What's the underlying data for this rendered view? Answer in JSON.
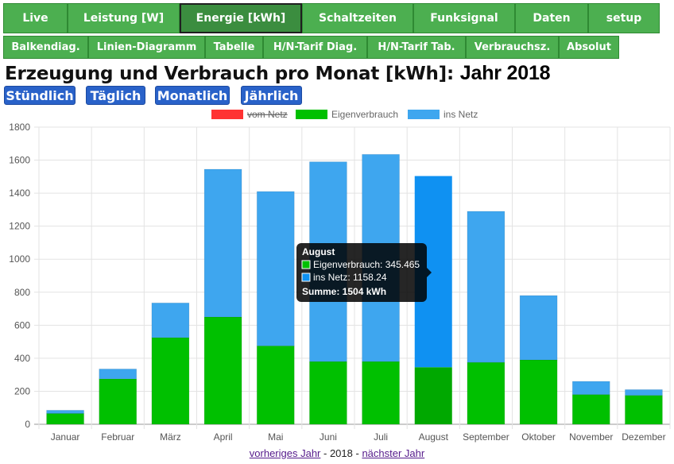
{
  "nav_main": [
    "Live",
    "Leistung [W]",
    "Energie [kWh]",
    "Schaltzeiten",
    "Funksignal",
    "Daten",
    "setup"
  ],
  "nav_main_active": "Energie [kWh]",
  "nav_sub": [
    "Balkendiag.",
    "Linien-Diagramm",
    "Tabelle",
    "H/N-Tarif Diag.",
    "H/N-Tarif Tab.",
    "Verbrauchsz.",
    "Absolut"
  ],
  "page": {
    "title": "Erzeugung und Verbrauch pro Monat [kWh]: ",
    "year_label": "Jahr 2018"
  },
  "period_buttons": [
    "Stündlich",
    "Täglich",
    "Monatlich",
    "Jährlich"
  ],
  "chart_data": {
    "type": "bar",
    "stacked": true,
    "categories": [
      "Januar",
      "Februar",
      "März",
      "April",
      "Mai",
      "Juni",
      "Juli",
      "August",
      "September",
      "Oktober",
      "November",
      "Dezember"
    ],
    "series": [
      {
        "name": "vom Netz",
        "color": "#ff3333",
        "hidden": true,
        "values": [
          0,
          0,
          0,
          0,
          0,
          0,
          0,
          0,
          0,
          0,
          0,
          0
        ]
      },
      {
        "name": "Eigenverbrauch",
        "color": "#00c000",
        "values": [
          65,
          275,
          525,
          650,
          475,
          380,
          380,
          345.465,
          375,
          390,
          180,
          175
        ]
      },
      {
        "name": "ins Netz",
        "color": "#3ea6ef",
        "values": [
          20,
          60,
          210,
          895,
          935,
          1210,
          1255,
          1158.24,
          915,
          390,
          80,
          35
        ]
      }
    ],
    "ylim": [
      0,
      1800
    ],
    "yticks": [
      0,
      200,
      400,
      600,
      800,
      1000,
      1200,
      1400,
      1600,
      1800
    ],
    "grid": true,
    "legend_position": "top",
    "tooltip": {
      "category_index": 7,
      "title": "August",
      "lines": [
        "Eigenverbrauch: 345.465",
        "ins Netz: 1158.24"
      ],
      "sum_line": "Summe: 1504 kWh"
    }
  },
  "footer": {
    "prev": "vorheriges Jahr",
    "sep1": " - ",
    "year": "2018",
    "sep2": " - ",
    "next": "nächster Jahr"
  }
}
